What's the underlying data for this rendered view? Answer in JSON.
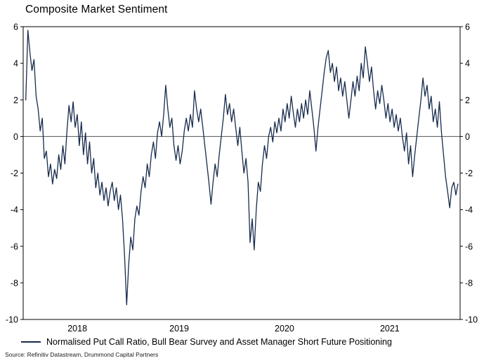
{
  "title": "Composite Market Sentiment",
  "source": "Source: Refinitiv Datastream, Drummond Capital Partners",
  "chart_data": {
    "type": "line",
    "title": "Composite Market Sentiment",
    "ylim": [
      -10,
      6
    ],
    "yticks": [
      "6",
      "4",
      "2",
      "0",
      "-2",
      "-4",
      "-6",
      "-8",
      "-10"
    ],
    "xticks": [
      "2018",
      "2019",
      "2020",
      "2021"
    ],
    "xtick_pos": [
      0.124,
      0.357,
      0.598,
      0.839
    ],
    "x_start": 0.006,
    "x_end": 0.995,
    "grid": "none",
    "zero_line": true,
    "legend_position": "bottom",
    "colors": {
      "line": "#172b4d",
      "frame": "#000000",
      "zero_line": "#555555"
    },
    "series": [
      {
        "name": "Normalised Put Call Ratio, Bull Bear Survey and Asset Manager Short Future Positioning",
        "values": [
          2.0,
          5.8,
          4.6,
          3.6,
          4.2,
          2.2,
          1.5,
          0.3,
          1.0,
          -1.2,
          -0.8,
          -2.2,
          -1.5,
          -2.6,
          -1.8,
          -2.3,
          -1.0,
          -1.8,
          -0.5,
          -1.5,
          0.3,
          1.7,
          0.8,
          1.9,
          0.5,
          1.2,
          -0.5,
          0.8,
          -1.0,
          0.2,
          -1.5,
          -0.3,
          -2.0,
          -1.2,
          -2.8,
          -2.0,
          -3.2,
          -2.5,
          -3.5,
          -2.8,
          -3.8,
          -3.0,
          -2.5,
          -3.5,
          -2.8,
          -4.0,
          -3.2,
          -4.5,
          -6.5,
          -9.2,
          -7.0,
          -5.5,
          -6.2,
          -4.5,
          -3.8,
          -4.3,
          -3.0,
          -2.2,
          -2.8,
          -1.5,
          -2.2,
          -1.0,
          -0.3,
          -1.2,
          0.2,
          0.8,
          0.0,
          1.2,
          2.8,
          1.5,
          0.5,
          1.0,
          -0.5,
          -1.3,
          -0.5,
          -1.5,
          -0.8,
          0.3,
          1.0,
          0.3,
          1.2,
          0.5,
          2.5,
          1.5,
          0.8,
          1.5,
          0.5,
          -0.5,
          -1.5,
          -2.5,
          -3.7,
          -2.5,
          -1.5,
          -2.2,
          -1.0,
          0.0,
          1.0,
          2.3,
          1.2,
          1.8,
          0.8,
          1.5,
          0.5,
          -0.5,
          0.5,
          -0.8,
          -2.0,
          -1.2,
          -2.5,
          -5.8,
          -4.5,
          -6.2,
          -4.0,
          -2.5,
          -3.0,
          -1.5,
          -0.5,
          -1.2,
          0.0,
          0.5,
          -0.3,
          0.8,
          0.2,
          1.0,
          0.3,
          1.5,
          0.8,
          1.8,
          1.0,
          2.2,
          1.3,
          0.5,
          1.5,
          0.8,
          1.8,
          1.0,
          2.0,
          1.2,
          2.5,
          1.5,
          0.5,
          -0.8,
          0.5,
          1.5,
          2.5,
          3.5,
          4.3,
          4.7,
          3.5,
          4.0,
          3.0,
          3.8,
          2.5,
          3.2,
          2.2,
          3.0,
          2.0,
          1.0,
          2.0,
          3.0,
          2.2,
          3.3,
          2.5,
          4.0,
          3.2,
          4.9,
          4.0,
          3.0,
          3.8,
          2.5,
          1.5,
          2.5,
          1.8,
          2.8,
          2.0,
          1.0,
          1.8,
          0.8,
          1.5,
          0.5,
          1.2,
          0.3,
          1.0,
          0.0,
          -0.8,
          0.2,
          -1.5,
          -0.5,
          -2.2,
          -1.0,
          0.0,
          1.0,
          2.0,
          3.2,
          2.2,
          2.8,
          1.5,
          2.2,
          0.8,
          1.5,
          0.5,
          1.9,
          0.2,
          -1.0,
          -2.2,
          -3.0,
          -3.9,
          -2.8,
          -2.5,
          -3.2,
          -2.6
        ]
      }
    ]
  }
}
